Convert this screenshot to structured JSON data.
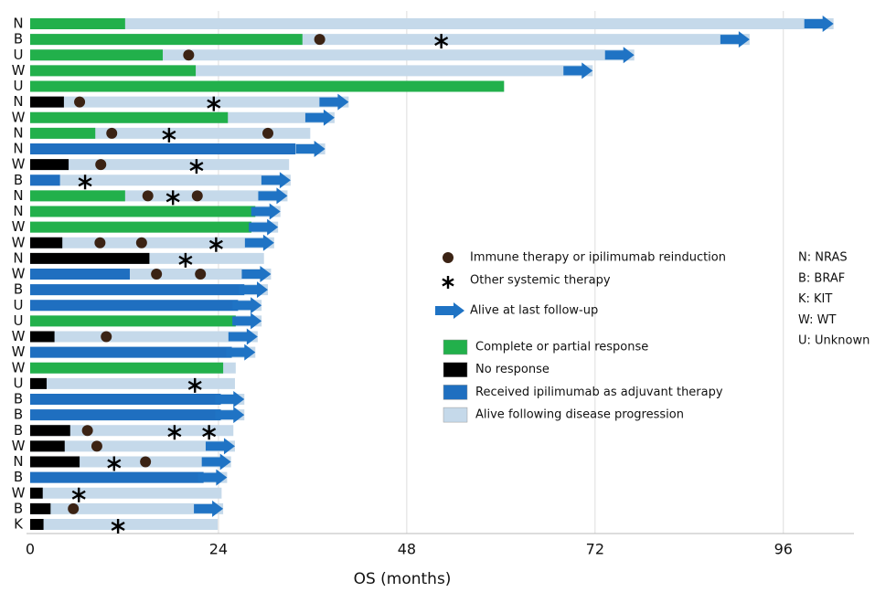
{
  "chart_data": {
    "type": "swimmer",
    "categories": [
      "N",
      "B",
      "U",
      "W",
      "U",
      "N",
      "W",
      "N",
      "N",
      "W",
      "B",
      "N",
      "N",
      "W",
      "W",
      "N",
      "W",
      "B",
      "U",
      "U",
      "W",
      "W",
      "W",
      "U",
      "B",
      "B",
      "B",
      "W",
      "N",
      "B",
      "W",
      "B",
      "K"
    ],
    "series": [
      {
        "name": "Complete or partial response",
        "color": "#22b04b",
        "values": [
          12.1,
          34.7,
          16.9,
          21.1,
          60.4,
          null,
          25.2,
          8.3,
          null,
          null,
          null,
          12.1,
          28.7,
          28.2,
          null,
          null,
          null,
          null,
          null,
          26.2,
          null,
          null,
          24.6,
          null,
          null,
          null,
          null,
          null,
          null,
          null,
          null,
          null,
          null
        ]
      },
      {
        "name": "No response",
        "color": "#000000",
        "values": [
          null,
          null,
          null,
          null,
          null,
          4.3,
          null,
          null,
          null,
          4.9,
          null,
          null,
          null,
          null,
          4.1,
          15.2,
          null,
          null,
          null,
          null,
          3.1,
          null,
          null,
          2.1,
          null,
          null,
          5.1,
          4.4,
          6.3,
          null,
          1.6,
          2.6,
          1.7
        ]
      },
      {
        "name": "Received ipilimumab as adjuvant therapy",
        "color": "#1f6fc0",
        "values": [
          null,
          null,
          null,
          null,
          null,
          null,
          null,
          null,
          33.8,
          null,
          3.8,
          null,
          null,
          null,
          null,
          null,
          12.7,
          27.3,
          26.5,
          null,
          null,
          25.7,
          null,
          null,
          24.3,
          24.3,
          null,
          null,
          null,
          22.1,
          null,
          null,
          null
        ]
      },
      {
        "name": "Alive following disease progression",
        "color": "#c5d9ea",
        "values": [
          102.4,
          91.7,
          77,
          71.7,
          60.4,
          40.6,
          38.8,
          35.7,
          37.6,
          33,
          33.2,
          32.8,
          31.9,
          31.6,
          31.1,
          29.8,
          30.7,
          30.3,
          29.5,
          29.5,
          29,
          28.7,
          26.2,
          26.1,
          27.3,
          27.3,
          25.9,
          26.1,
          25.6,
          25.1,
          24.4,
          24.6,
          23.9
        ]
      }
    ],
    "markers": [
      {
        "name": "Immune therapy or ipilimumab reinduction",
        "shape": "dot",
        "color": "#3b2314",
        "values": [
          [],
          [
            36.9
          ],
          [
            20.2
          ],
          [],
          [],
          [
            6.3
          ],
          [],
          [
            10.4,
            30.3
          ],
          [],
          [
            9
          ],
          [],
          [
            15,
            21.3
          ],
          [],
          [],
          [
            8.9,
            14.2
          ],
          [],
          [
            16.1,
            21.7
          ],
          [],
          [],
          [],
          [
            9.7
          ],
          [],
          [],
          [],
          [],
          [],
          [
            7.3
          ],
          [
            8.5
          ],
          [
            14.7
          ],
          [],
          [],
          [
            5.5
          ],
          []
        ]
      },
      {
        "name": "Other systemic therapy",
        "shape": "asterisk",
        "color": "#000000",
        "values": [
          [],
          [
            52.4
          ],
          [],
          [],
          [],
          [
            23.4
          ],
          [],
          [
            17.7
          ],
          [],
          [
            21.2
          ],
          [
            7
          ],
          [
            18.2
          ],
          [],
          [],
          [
            23.7
          ],
          [
            19.8
          ],
          [],
          [],
          [],
          [],
          [],
          [],
          [],
          [
            21
          ],
          [],
          [],
          [
            18.4,
            22.8
          ],
          [],
          [
            10.7
          ],
          [],
          [
            6.2
          ],
          [],
          [
            11.2
          ]
        ]
      }
    ],
    "alive": {
      "name": "Alive at last follow-up",
      "color": "#1f73c4",
      "values": [
        true,
        true,
        true,
        true,
        false,
        true,
        true,
        false,
        true,
        false,
        true,
        true,
        true,
        true,
        true,
        false,
        true,
        true,
        true,
        true,
        true,
        true,
        false,
        false,
        true,
        true,
        false,
        true,
        true,
        true,
        false,
        true,
        false
      ]
    },
    "key": [
      "N: NRAS",
      "B: BRAF",
      "K: KIT",
      "W: WT",
      "U: Unknown"
    ],
    "xlabel": "OS (months)",
    "xlim": [
      0,
      105
    ],
    "xticks": [
      0,
      24,
      48,
      72,
      96
    ],
    "grid": true
  }
}
